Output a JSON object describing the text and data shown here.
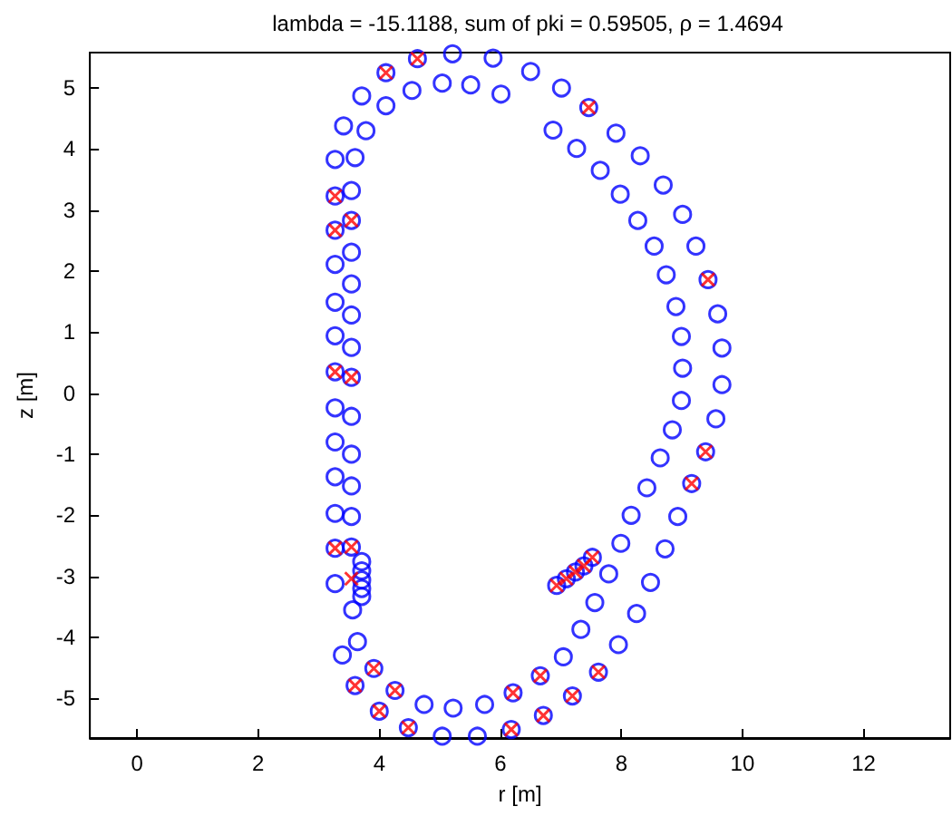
{
  "chart_data": {
    "type": "scatter",
    "title": "lambda = -15.1188, sum of pki = 0.59505, ρ = 1.4694",
    "xlabel": "r [m]",
    "ylabel": "z [m]",
    "xlim": [
      -0.78,
      13.43
    ],
    "ylim": [
      -5.65,
      5.58
    ],
    "xticks": [
      0,
      2,
      4,
      6,
      8,
      10,
      12
    ],
    "yticks": [
      -5,
      -4,
      -3,
      -2,
      -1,
      0,
      1,
      2,
      3,
      4,
      5
    ],
    "grid": false,
    "series": [
      {
        "color": "#0000ff",
        "marker": "circle",
        "x": [
          4.11,
          4.63,
          5.21,
          5.88,
          3.71,
          4.11,
          4.54,
          5.04,
          5.51,
          6.01,
          6.5,
          7.01,
          7.46,
          3.41,
          3.78,
          3.27,
          3.6,
          3.27,
          3.54,
          3.27,
          3.54,
          3.27,
          3.54,
          3.27,
          3.54,
          3.27,
          3.54,
          3.54,
          3.27,
          3.54,
          3.27,
          3.54,
          3.27,
          3.54,
          3.27,
          3.54,
          3.27,
          3.54,
          3.27,
          3.54,
          3.71,
          3.71,
          3.71,
          3.71,
          3.71,
          3.56,
          3.27,
          3.64,
          3.39,
          3.91,
          3.6,
          4.26,
          4.0,
          4.74,
          5.22,
          5.74,
          4.48,
          5.04,
          5.62,
          6.18,
          6.21,
          6.66,
          6.71,
          7.19,
          7.04,
          7.33,
          7.56,
          7.79,
          7.99,
          8.16,
          6.93,
          7.09,
          7.24,
          7.38,
          7.52,
          7.62,
          7.95,
          8.25,
          8.48,
          8.72,
          8.93,
          9.16,
          9.39,
          9.56,
          9.66,
          8.42,
          8.64,
          8.84,
          8.99,
          9.01,
          6.87,
          7.91,
          7.26,
          8.31,
          7.65,
          8.69,
          7.98,
          9.01,
          8.27,
          9.23,
          8.54,
          9.43,
          8.74,
          9.59,
          8.9,
          9.66,
          8.99
        ],
        "values": [
          5.25,
          5.48,
          5.56,
          5.49,
          4.87,
          4.71,
          4.96,
          5.08,
          5.05,
          4.9,
          5.27,
          5.0,
          4.68,
          4.38,
          4.3,
          3.83,
          3.86,
          3.23,
          3.32,
          2.67,
          2.83,
          2.11,
          2.31,
          1.49,
          1.79,
          0.94,
          1.28,
          0.75,
          0.35,
          0.26,
          -0.24,
          -0.38,
          -0.8,
          -1.0,
          -1.37,
          -1.52,
          -1.97,
          -2.02,
          -2.54,
          -2.52,
          -2.76,
          -2.91,
          -3.06,
          -3.2,
          -3.33,
          -3.55,
          -3.12,
          -4.07,
          -4.29,
          -4.51,
          -4.79,
          -4.87,
          -5.21,
          -5.1,
          -5.16,
          -5.1,
          -5.48,
          -5.62,
          -5.62,
          -5.51,
          -4.91,
          -4.63,
          -5.28,
          -4.96,
          -4.32,
          -3.87,
          -3.43,
          -2.96,
          -2.46,
          -2.0,
          -3.15,
          -3.04,
          -2.93,
          -2.83,
          -2.69,
          -4.57,
          -4.12,
          -3.61,
          -3.1,
          -2.55,
          -2.02,
          -1.48,
          -0.96,
          -0.42,
          0.14,
          -1.55,
          -1.06,
          -0.6,
          -0.12,
          0.41,
          4.31,
          4.26,
          4.01,
          3.89,
          3.65,
          3.41,
          3.26,
          2.93,
          2.83,
          2.41,
          2.41,
          1.86,
          1.94,
          1.3,
          1.42,
          0.74,
          0.93
        ]
      },
      {
        "color": "#ff0000",
        "marker": "cross",
        "x": [
          4.11,
          4.63,
          7.46,
          3.27,
          3.27,
          3.54,
          3.27,
          3.54,
          3.27,
          3.54,
          3.54,
          3.91,
          3.6,
          4.26,
          4.0,
          4.48,
          6.18,
          6.21,
          6.66,
          6.71,
          7.19,
          7.62,
          9.16,
          9.39,
          9.43,
          6.93,
          7.09,
          7.24,
          7.38,
          7.52
        ],
        "values": [
          5.25,
          5.48,
          4.68,
          3.23,
          2.67,
          2.83,
          0.35,
          0.26,
          -2.54,
          -2.52,
          -3.04,
          -4.51,
          -4.79,
          -4.87,
          -5.21,
          -5.48,
          -5.51,
          -4.91,
          -4.63,
          -5.28,
          -4.96,
          -4.57,
          -1.48,
          -0.96,
          1.86,
          -3.15,
          -3.04,
          -2.93,
          -2.83,
          -2.69
        ]
      }
    ]
  }
}
